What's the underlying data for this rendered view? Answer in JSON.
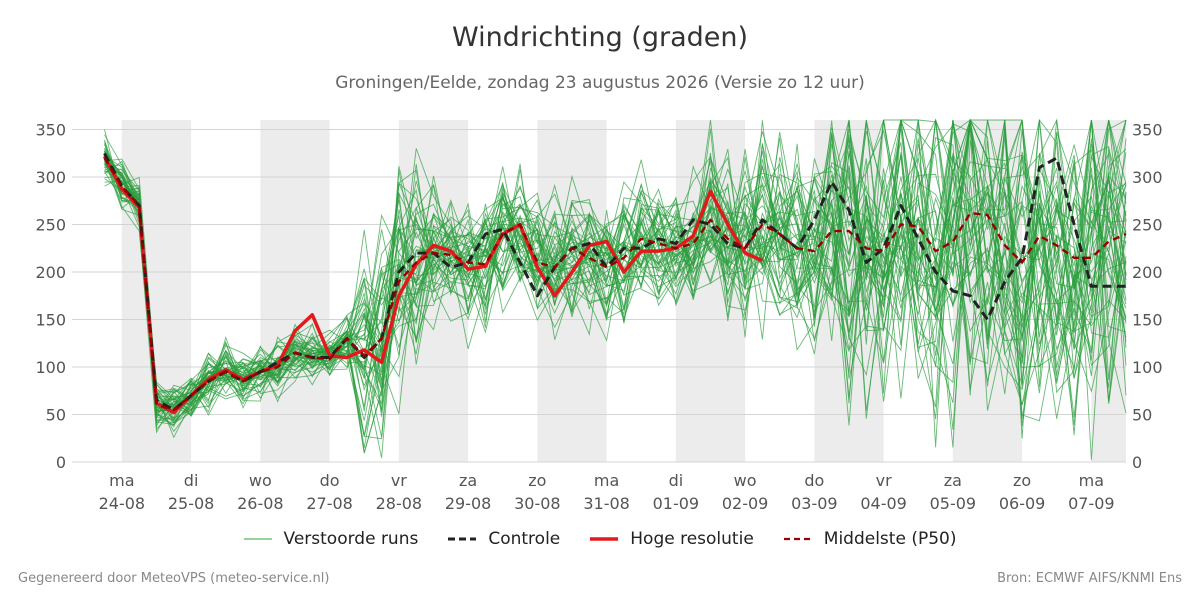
{
  "chart_data": {
    "type": "line",
    "title": "Windrichting (graden)",
    "subtitle": "Groningen/Eelde, zondag 23 augustus 2026 (Versie zo 12 uur)",
    "ylim": [
      0,
      360
    ],
    "y_ticks": [
      0,
      50,
      100,
      150,
      200,
      250,
      300,
      350
    ],
    "x_ticks": [
      {
        "day": "ma",
        "date": "24-08"
      },
      {
        "day": "di",
        "date": "25-08"
      },
      {
        "day": "wo",
        "date": "26-08"
      },
      {
        "day": "do",
        "date": "27-08"
      },
      {
        "day": "vr",
        "date": "28-08"
      },
      {
        "day": "za",
        "date": "29-08"
      },
      {
        "day": "zo",
        "date": "30-08"
      },
      {
        "day": "ma",
        "date": "31-08"
      },
      {
        "day": "di",
        "date": "01-09"
      },
      {
        "day": "wo",
        "date": "02-09"
      },
      {
        "day": "do",
        "date": "03-09"
      },
      {
        "day": "vr",
        "date": "04-09"
      },
      {
        "day": "za",
        "date": "05-09"
      },
      {
        "day": "zo",
        "date": "06-09"
      },
      {
        "day": "ma",
        "date": "07-09"
      }
    ],
    "x_range_days": [
      -0.72,
      14.5
    ],
    "shaded_night_bands": [
      [
        0,
        1
      ],
      [
        2,
        3
      ],
      [
        4,
        5
      ],
      [
        6,
        7
      ],
      [
        8,
        9
      ],
      [
        10,
        11
      ],
      [
        12,
        13
      ],
      [
        14,
        14.5
      ]
    ],
    "grid": true,
    "legend_position": "bottom",
    "x_days": [
      -0.25,
      0,
      0.25,
      0.5,
      0.75,
      1,
      1.25,
      1.5,
      1.75,
      2,
      2.25,
      2.5,
      2.75,
      3,
      3.25,
      3.5,
      3.75,
      4,
      4.25,
      4.5,
      4.75,
      5,
      5.25,
      5.5,
      5.75,
      6,
      6.25,
      6.5,
      6.75,
      7,
      7.25,
      7.5,
      7.75,
      8,
      8.25,
      8.5,
      8.75,
      9,
      9.25,
      9.5,
      9.75,
      10,
      10.25,
      10.5,
      10.75,
      11,
      11.25,
      11.5,
      11.75,
      12,
      12.25,
      12.5,
      12.75,
      13,
      13.25,
      13.5,
      13.75,
      14,
      14.25,
      14.5
    ],
    "series": [
      {
        "name": "Controle",
        "color": "#222222",
        "style": "dashed",
        "values": [
          325,
          290,
          270,
          65,
          55,
          70,
          85,
          95,
          85,
          95,
          105,
          115,
          110,
          110,
          130,
          110,
          130,
          200,
          220,
          220,
          205,
          210,
          240,
          245,
          210,
          175,
          205,
          225,
          230,
          205,
          225,
          225,
          235,
          230,
          255,
          250,
          230,
          225,
          255,
          240,
          225,
          255,
          295,
          265,
          210,
          225,
          270,
          235,
          200,
          180,
          175,
          150,
          190,
          215,
          310,
          320,
          250,
          185,
          185,
          185
        ]
      },
      {
        "name": "Hoge resolutie",
        "color": "#e31a1c",
        "style": "solid",
        "values": [
          322,
          287,
          268,
          62,
          52,
          70,
          87,
          97,
          87,
          95,
          102,
          138,
          155,
          112,
          110,
          118,
          105,
          175,
          208,
          228,
          222,
          203,
          206,
          240,
          250,
          205,
          175,
          200,
          228,
          232,
          200,
          222,
          222,
          225,
          238,
          285,
          250,
          220,
          212,
          null,
          null,
          null,
          null,
          null,
          null,
          null,
          null,
          null,
          null,
          null,
          null,
          null,
          null,
          null,
          null,
          null,
          null,
          null,
          null,
          null
        ]
      },
      {
        "name": "Middelste (P50)",
        "color": "#990000",
        "style": "dashed",
        "values": [
          320,
          290,
          270,
          60,
          55,
          70,
          85,
          95,
          85,
          95,
          100,
          115,
          110,
          108,
          130,
          112,
          130,
          190,
          210,
          220,
          218,
          210,
          208,
          240,
          250,
          210,
          205,
          225,
          215,
          205,
          215,
          235,
          230,
          225,
          230,
          255,
          235,
          225,
          250,
          240,
          225,
          222,
          243,
          243,
          225,
          222,
          250,
          248,
          222,
          232,
          262,
          260,
          228,
          210,
          238,
          228,
          215,
          215,
          232,
          240
        ]
      }
    ],
    "ensemble": {
      "name": "Verstoorde runs",
      "color": "#2a9d3c",
      "style": "thin",
      "count": 50
    }
  },
  "legend": [
    {
      "label": "Verstoorde runs",
      "color": "#5cb85c",
      "style": "thin"
    },
    {
      "label": "Controle",
      "color": "#222222",
      "style": "dashed"
    },
    {
      "label": "Hoge resolutie",
      "color": "#e31a1c",
      "style": "solid"
    },
    {
      "label": "Middelste (P50)",
      "color": "#990000",
      "style": "dashed"
    }
  ],
  "footer": {
    "left": "Gegenereerd door MeteoVPS (meteo-service.nl)",
    "right": "Bron: ECMWF AIFS/KNMI Ens"
  }
}
